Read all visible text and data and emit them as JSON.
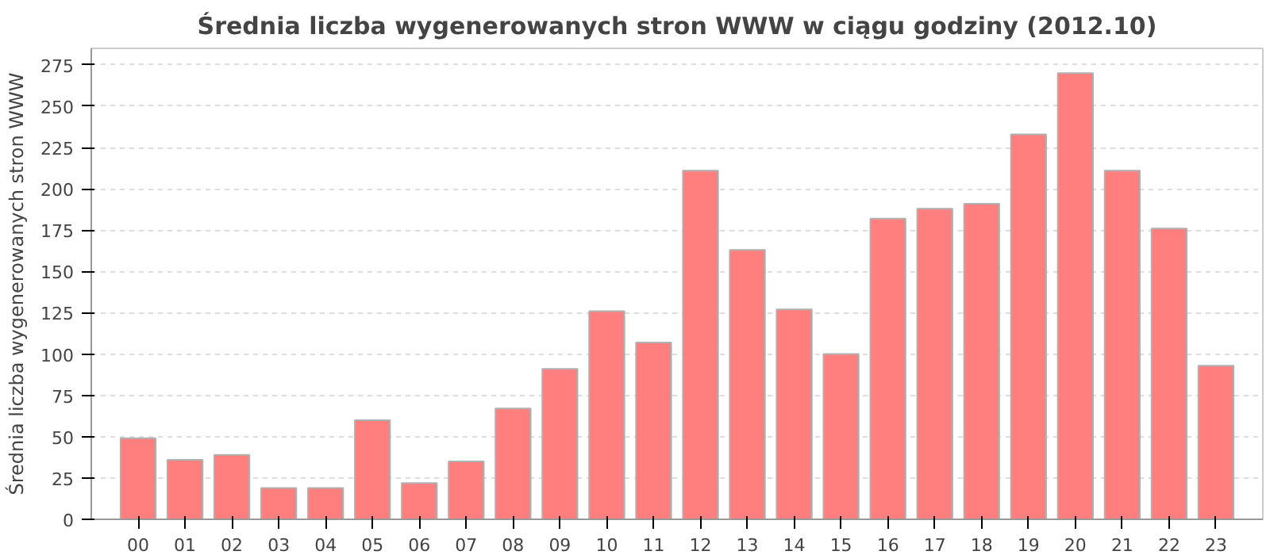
{
  "chart_data": {
    "type": "bar",
    "title": "Średnia liczba wygenerowanych stron WWW w ciągu godziny (2012.10)",
    "ylabel": "Średnia liczba wygenerowanych stron WWW",
    "categories": [
      "00",
      "01",
      "02",
      "03",
      "04",
      "05",
      "06",
      "07",
      "08",
      "09",
      "10",
      "11",
      "12",
      "13",
      "14",
      "15",
      "16",
      "17",
      "18",
      "19",
      "20",
      "21",
      "22",
      "23"
    ],
    "values": [
      49,
      36,
      39,
      19,
      19,
      60,
      22,
      35,
      67,
      91,
      126,
      107,
      211,
      163,
      127,
      100,
      182,
      188,
      191,
      233,
      270,
      211,
      176,
      93
    ],
    "color": "#ff7f7f",
    "ylim": [
      0,
      285
    ],
    "yticks": [
      0,
      25,
      50,
      75,
      100,
      125,
      150,
      175,
      200,
      225,
      250,
      275
    ],
    "grid": "y"
  }
}
